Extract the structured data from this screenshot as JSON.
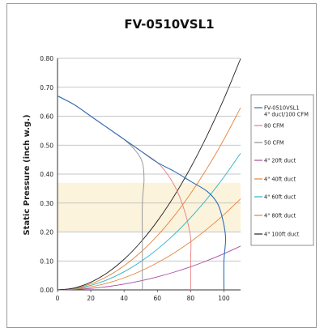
{
  "chart_data": {
    "type": "line",
    "title": "FV-0510VSL1",
    "xlabel": "",
    "ylabel": "Static Pressure (inch w.g.)",
    "xlim": [
      0,
      110
    ],
    "ylim": [
      0,
      0.8
    ],
    "x_ticks": [
      "0",
      "20",
      "40",
      "60",
      "80",
      "100"
    ],
    "y_ticks": [
      "0.00",
      "0.10",
      "0.20",
      "0.30",
      "0.40",
      "0.50",
      "0.60",
      "0.70",
      "0.80"
    ],
    "grid": "horizontal",
    "legend_position": "right",
    "highlight_band": {
      "y_range": [
        0.2,
        0.37
      ],
      "color": "#fbf3dc"
    },
    "series": [
      {
        "name": "FV-0510VSL1\n4\" duct/100 CFM",
        "color": "#2e6db4",
        "x": [
          0,
          10,
          20,
          30,
          40,
          50,
          60,
          70,
          80,
          90,
          96,
          99,
          101,
          100,
          100
        ],
        "y": [
          0.67,
          0.64,
          0.6,
          0.56,
          0.52,
          0.48,
          0.44,
          0.41,
          0.375,
          0.34,
          0.3,
          0.25,
          0.18,
          0.1,
          0.0
        ]
      },
      {
        "name": "80 CFM",
        "color": "#e77c81",
        "x": [
          0,
          10,
          20,
          30,
          40,
          50,
          60,
          66,
          72,
          77,
          80,
          80,
          80
        ],
        "y": [
          0.67,
          0.64,
          0.6,
          0.56,
          0.52,
          0.48,
          0.44,
          0.4,
          0.34,
          0.26,
          0.18,
          0.1,
          0.0
        ]
      },
      {
        "name": "50 CFM",
        "color": "#8f8f96",
        "x": [
          0,
          10,
          20,
          30,
          40,
          47,
          51,
          52,
          51,
          51,
          51
        ],
        "y": [
          0.67,
          0.64,
          0.6,
          0.56,
          0.52,
          0.48,
          0.44,
          0.38,
          0.3,
          0.15,
          0.0
        ]
      },
      {
        "name": "4\" 20ft duct",
        "color": "#a64ca0",
        "x": [
          0,
          10,
          20,
          30,
          40,
          50,
          60,
          70,
          80,
          90,
          100,
          110
        ],
        "y": [
          0.0,
          0.0012,
          0.005,
          0.0112,
          0.02,
          0.0312,
          0.045,
          0.0612,
          0.08,
          0.1012,
          0.125,
          0.1512
        ]
      },
      {
        "name": "4\" 40ft duct",
        "color": "#e8833a",
        "x": [
          0,
          10,
          20,
          30,
          40,
          50,
          60,
          70,
          80,
          90,
          100,
          110
        ],
        "y": [
          0.0,
          0.0026,
          0.0104,
          0.0234,
          0.0416,
          0.065,
          0.0936,
          0.1274,
          0.1664,
          0.2106,
          0.26,
          0.3146
        ]
      },
      {
        "name": "4\" 60ft duct",
        "color": "#2ab3c4",
        "x": [
          0,
          10,
          20,
          30,
          40,
          50,
          60,
          70,
          80,
          90,
          100,
          110
        ],
        "y": [
          0.0,
          0.0039,
          0.0156,
          0.0351,
          0.0624,
          0.0975,
          0.1404,
          0.1911,
          0.2496,
          0.3159,
          0.39,
          0.4719
        ]
      },
      {
        "name": "4\" 80ft duct",
        "color": "#e8833a",
        "x": [
          0,
          10,
          20,
          30,
          40,
          50,
          60,
          70,
          80,
          90,
          100,
          110
        ],
        "y": [
          0.0,
          0.0052,
          0.0208,
          0.0468,
          0.0832,
          0.13,
          0.1872,
          0.2548,
          0.3328,
          0.4212,
          0.52,
          0.6292
        ]
      },
      {
        "name": "4\" 100ft duct",
        "color": "#222222",
        "x": [
          0,
          10,
          20,
          30,
          40,
          50,
          60,
          70,
          80,
          90,
          100,
          110
        ],
        "y": [
          0.0,
          0.0066,
          0.0264,
          0.0594,
          0.1056,
          0.165,
          0.2376,
          0.3234,
          0.4224,
          0.5346,
          0.66,
          0.7986
        ]
      }
    ]
  }
}
